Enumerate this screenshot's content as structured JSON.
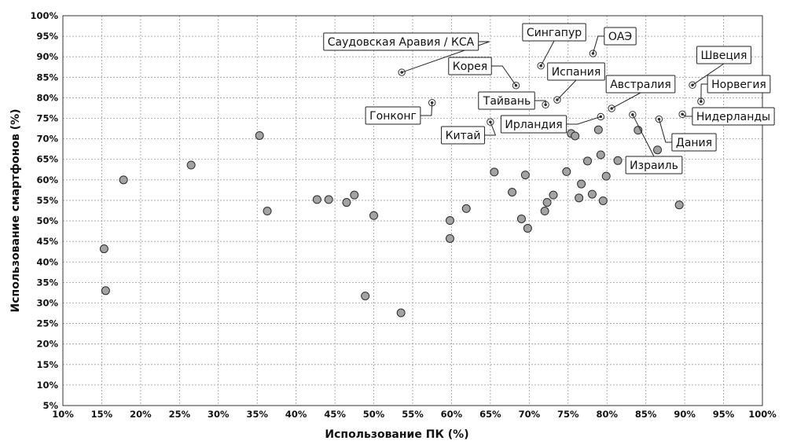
{
  "chart_data": {
    "type": "scatter",
    "xlabel": "Использование ПК (%)",
    "ylabel": "Использование смартфонов (%)",
    "xlim": [
      10,
      100
    ],
    "ylim": [
      5,
      100
    ],
    "x_ticks": [
      10,
      15,
      20,
      25,
      30,
      35,
      40,
      45,
      50,
      55,
      60,
      65,
      70,
      75,
      80,
      85,
      90,
      95,
      100
    ],
    "y_ticks": [
      5,
      10,
      15,
      20,
      25,
      30,
      35,
      40,
      45,
      50,
      55,
      60,
      65,
      70,
      75,
      80,
      85,
      90,
      95,
      100
    ],
    "x_tick_labels": [
      "10%",
      "15%",
      "20%",
      "25%",
      "30%",
      "35%",
      "40%",
      "45%",
      "50%",
      "55%",
      "60%",
      "65%",
      "70%",
      "75%",
      "80%",
      "85%",
      "90%",
      "95%",
      "100%"
    ],
    "y_tick_labels": [
      "5%",
      "10%",
      "15%",
      "20%",
      "25%",
      "30%",
      "35%",
      "40%",
      "45%",
      "50%",
      "55%",
      "60%",
      "65%",
      "70%",
      "75%",
      "80%",
      "85%",
      "90%",
      "95%",
      "100%"
    ],
    "grid": true,
    "points": [
      {
        "x": 15.3,
        "y": 43.2
      },
      {
        "x": 15.5,
        "y": 33.0
      },
      {
        "x": 17.8,
        "y": 60.0
      },
      {
        "x": 26.5,
        "y": 63.6
      },
      {
        "x": 35.3,
        "y": 70.8
      },
      {
        "x": 36.3,
        "y": 52.4
      },
      {
        "x": 42.7,
        "y": 55.2
      },
      {
        "x": 44.2,
        "y": 55.2
      },
      {
        "x": 46.5,
        "y": 54.5
      },
      {
        "x": 47.5,
        "y": 56.3
      },
      {
        "x": 48.9,
        "y": 31.7
      },
      {
        "x": 50.0,
        "y": 51.3
      },
      {
        "x": 53.5,
        "y": 27.6
      },
      {
        "x": 59.8,
        "y": 50.1
      },
      {
        "x": 59.8,
        "y": 45.7
      },
      {
        "x": 61.9,
        "y": 53.0
      },
      {
        "x": 65.5,
        "y": 61.9
      },
      {
        "x": 67.8,
        "y": 57.0
      },
      {
        "x": 69.0,
        "y": 50.5
      },
      {
        "x": 69.5,
        "y": 61.2
      },
      {
        "x": 69.8,
        "y": 48.2
      },
      {
        "x": 72.0,
        "y": 52.4
      },
      {
        "x": 72.3,
        "y": 54.5
      },
      {
        "x": 73.1,
        "y": 56.3
      },
      {
        "x": 74.8,
        "y": 62.0
      },
      {
        "x": 75.4,
        "y": 71.3
      },
      {
        "x": 75.9,
        "y": 70.7
      },
      {
        "x": 76.4,
        "y": 55.6
      },
      {
        "x": 76.7,
        "y": 59.0
      },
      {
        "x": 77.5,
        "y": 64.6
      },
      {
        "x": 78.1,
        "y": 56.5
      },
      {
        "x": 78.9,
        "y": 72.2
      },
      {
        "x": 79.2,
        "y": 66.1
      },
      {
        "x": 79.5,
        "y": 54.9
      },
      {
        "x": 79.9,
        "y": 60.9
      },
      {
        "x": 81.4,
        "y": 64.7
      },
      {
        "x": 84.0,
        "y": 72.1
      },
      {
        "x": 86.5,
        "y": 67.3
      },
      {
        "x": 89.3,
        "y": 53.9
      }
    ],
    "labeled_points": [
      {
        "label": "Саудовская Аравия / КСА",
        "x": 53.6,
        "y": 86.2
      },
      {
        "label": "Сингапур",
        "x": 71.5,
        "y": 87.8
      },
      {
        "label": "ОАЭ",
        "x": 78.2,
        "y": 90.8
      },
      {
        "label": "Швеция",
        "x": 91.0,
        "y": 83.1
      },
      {
        "label": "Корея",
        "x": 68.3,
        "y": 83.0
      },
      {
        "label": "Испания",
        "x": 73.6,
        "y": 79.5
      },
      {
        "label": "Норвегия",
        "x": 92.1,
        "y": 79.1
      },
      {
        "label": "Австралия",
        "x": 80.6,
        "y": 77.4
      },
      {
        "label": "Гонконг",
        "x": 57.5,
        "y": 78.8
      },
      {
        "label": "Тайвань",
        "x": 72.1,
        "y": 78.3
      },
      {
        "label": "Нидерланды",
        "x": 89.7,
        "y": 76.0
      },
      {
        "label": "Израиль",
        "x": 83.3,
        "y": 75.9
      },
      {
        "label": "Ирландия",
        "x": 79.2,
        "y": 75.4
      },
      {
        "label": "Дания",
        "x": 86.7,
        "y": 74.8
      },
      {
        "label": "Китай",
        "x": 65.0,
        "y": 74.1
      }
    ]
  }
}
